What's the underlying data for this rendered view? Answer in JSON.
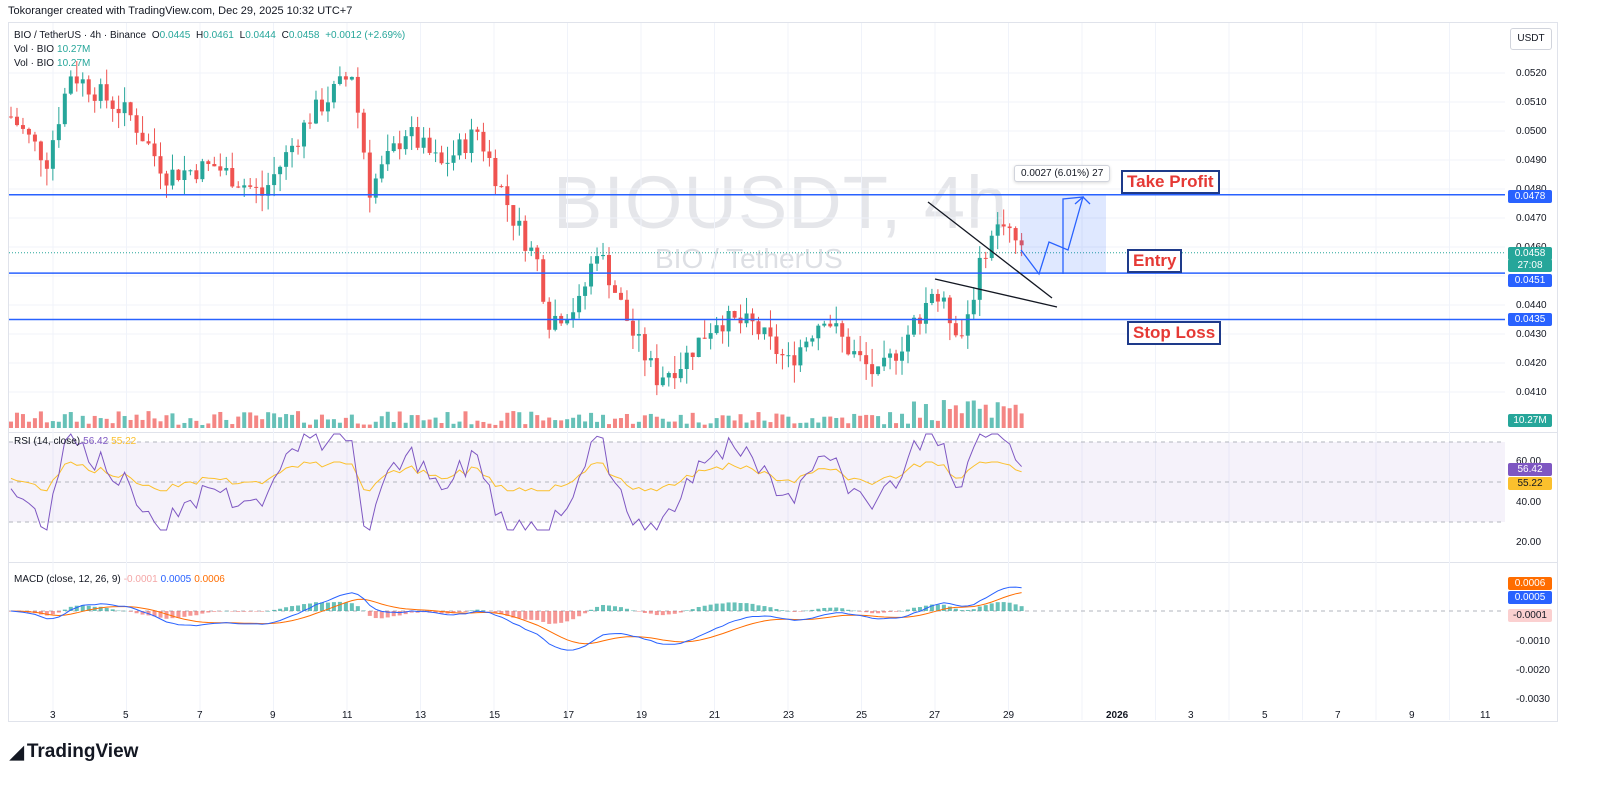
{
  "header": {
    "attribution": "Tokoranger created with TradingView.com, Dec 29, 2025 10:32 UTC+7"
  },
  "symbol": {
    "name": "BIO / TetherUS · 4h · Binance",
    "o_label": "O",
    "o": "0.0445",
    "h_label": "H",
    "h": "0.0461",
    "l_label": "L",
    "l": "0.0444",
    "c_label": "C",
    "c": "0.0458",
    "change": "+0.0012 (+2.69%)",
    "vol1_label": "Vol · BIO",
    "vol1": "10.27M",
    "vol2_label": "Vol · BIO",
    "vol2": "10.27M"
  },
  "watermark": {
    "ticker": "BIOUSDT, 4h",
    "pair": "BIO / TetherUS"
  },
  "currency_button": "USDT",
  "price_axis": [
    "0.0520",
    "0.0510",
    "0.0500",
    "0.0490",
    "0.0480",
    "0.0470",
    "0.0460",
    "0.0440",
    "0.0430",
    "0.0420",
    "0.0410"
  ],
  "price_tags": {
    "take_profit": "0.0478",
    "current": "0.0458",
    "countdown": "27:08",
    "entry": "0.0451",
    "stop_loss": "0.0435",
    "volume": "10.27M"
  },
  "annotations": {
    "take_profit_label": "Take Profit",
    "entry_label": "Entry",
    "stop_loss_label": "Stop Loss",
    "measure_text": "0.0027 (6.01%) 27"
  },
  "rsi": {
    "title": "RSI (14, close)",
    "value1": "56.42",
    "value2": "55.22",
    "axis": [
      "60.00",
      "40.00",
      "20.00"
    ]
  },
  "macd": {
    "title": "MACD (close, 12, 26, 9)",
    "hist": "-0.0001",
    "macd": "0.0005",
    "signal": "0.0006",
    "axis": [
      "-0.0010",
      "-0.0020",
      "-0.0030"
    ]
  },
  "time_axis": [
    "3",
    "5",
    "7",
    "9",
    "11",
    "13",
    "15",
    "17",
    "19",
    "21",
    "23",
    "25",
    "27",
    "29",
    "2026",
    "3",
    "5",
    "7",
    "9",
    "11"
  ],
  "colors": {
    "up": "#26a69a",
    "down": "#ef5350",
    "level_line": "#2962ff",
    "rsi_line": "#7e57c2",
    "rsi_ma": "#fbc02d",
    "macd_line": "#2962ff",
    "signal_line": "#ff6d00"
  },
  "branding": {
    "logo_text": "TradingView"
  }
}
